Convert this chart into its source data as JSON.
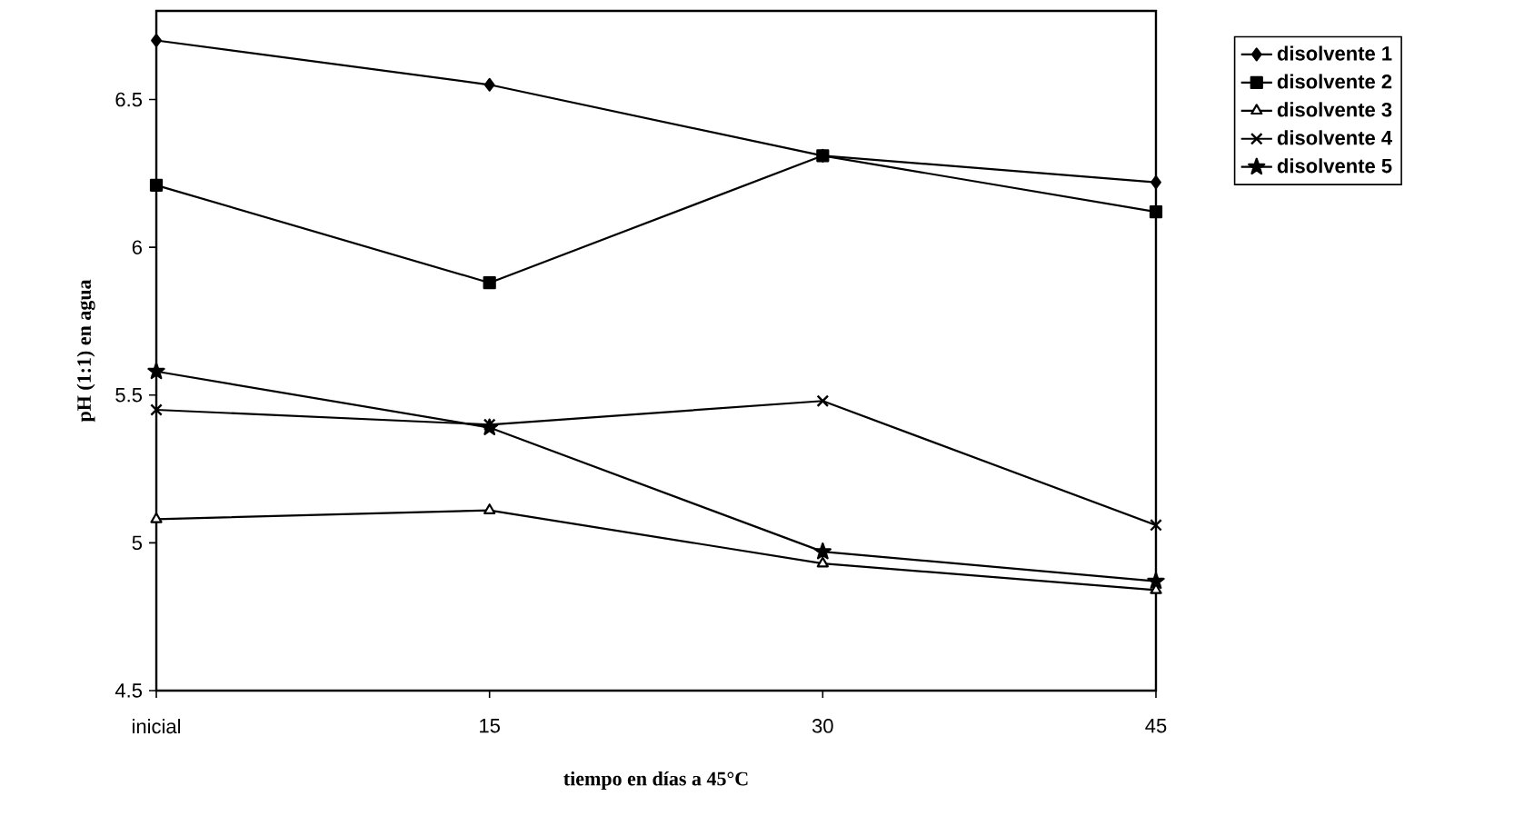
{
  "chart_data": {
    "type": "line",
    "xlabel": "tiempo en días a 45°C",
    "ylabel": "pH (1:1) en agua",
    "categories": [
      "inicial",
      "15",
      "30",
      "45"
    ],
    "series": [
      {
        "name": "disolvente 1",
        "color": "#000000",
        "marker": "diamond",
        "values": [
          6.7,
          6.55,
          6.31,
          6.22
        ]
      },
      {
        "name": "disolvente 2",
        "color": "#000000",
        "marker": "square",
        "values": [
          6.21,
          5.88,
          6.31,
          6.12
        ]
      },
      {
        "name": "disolvente 3",
        "color": "#000000",
        "marker": "triangle",
        "values": [
          5.08,
          5.11,
          4.93,
          4.84
        ]
      },
      {
        "name": "disolvente 4",
        "color": "#000000",
        "marker": "cross",
        "values": [
          5.45,
          5.4,
          5.48,
          5.06
        ]
      },
      {
        "name": "disolvente 5",
        "color": "#000000",
        "marker": "star",
        "values": [
          5.58,
          5.39,
          4.97,
          4.87
        ]
      }
    ],
    "ylim": [
      4.5,
      6.8
    ],
    "yticks": [
      4.5,
      5,
      5.5,
      6,
      6.5
    ],
    "grid": false,
    "legend": "top right",
    "line_style": "solid"
  }
}
